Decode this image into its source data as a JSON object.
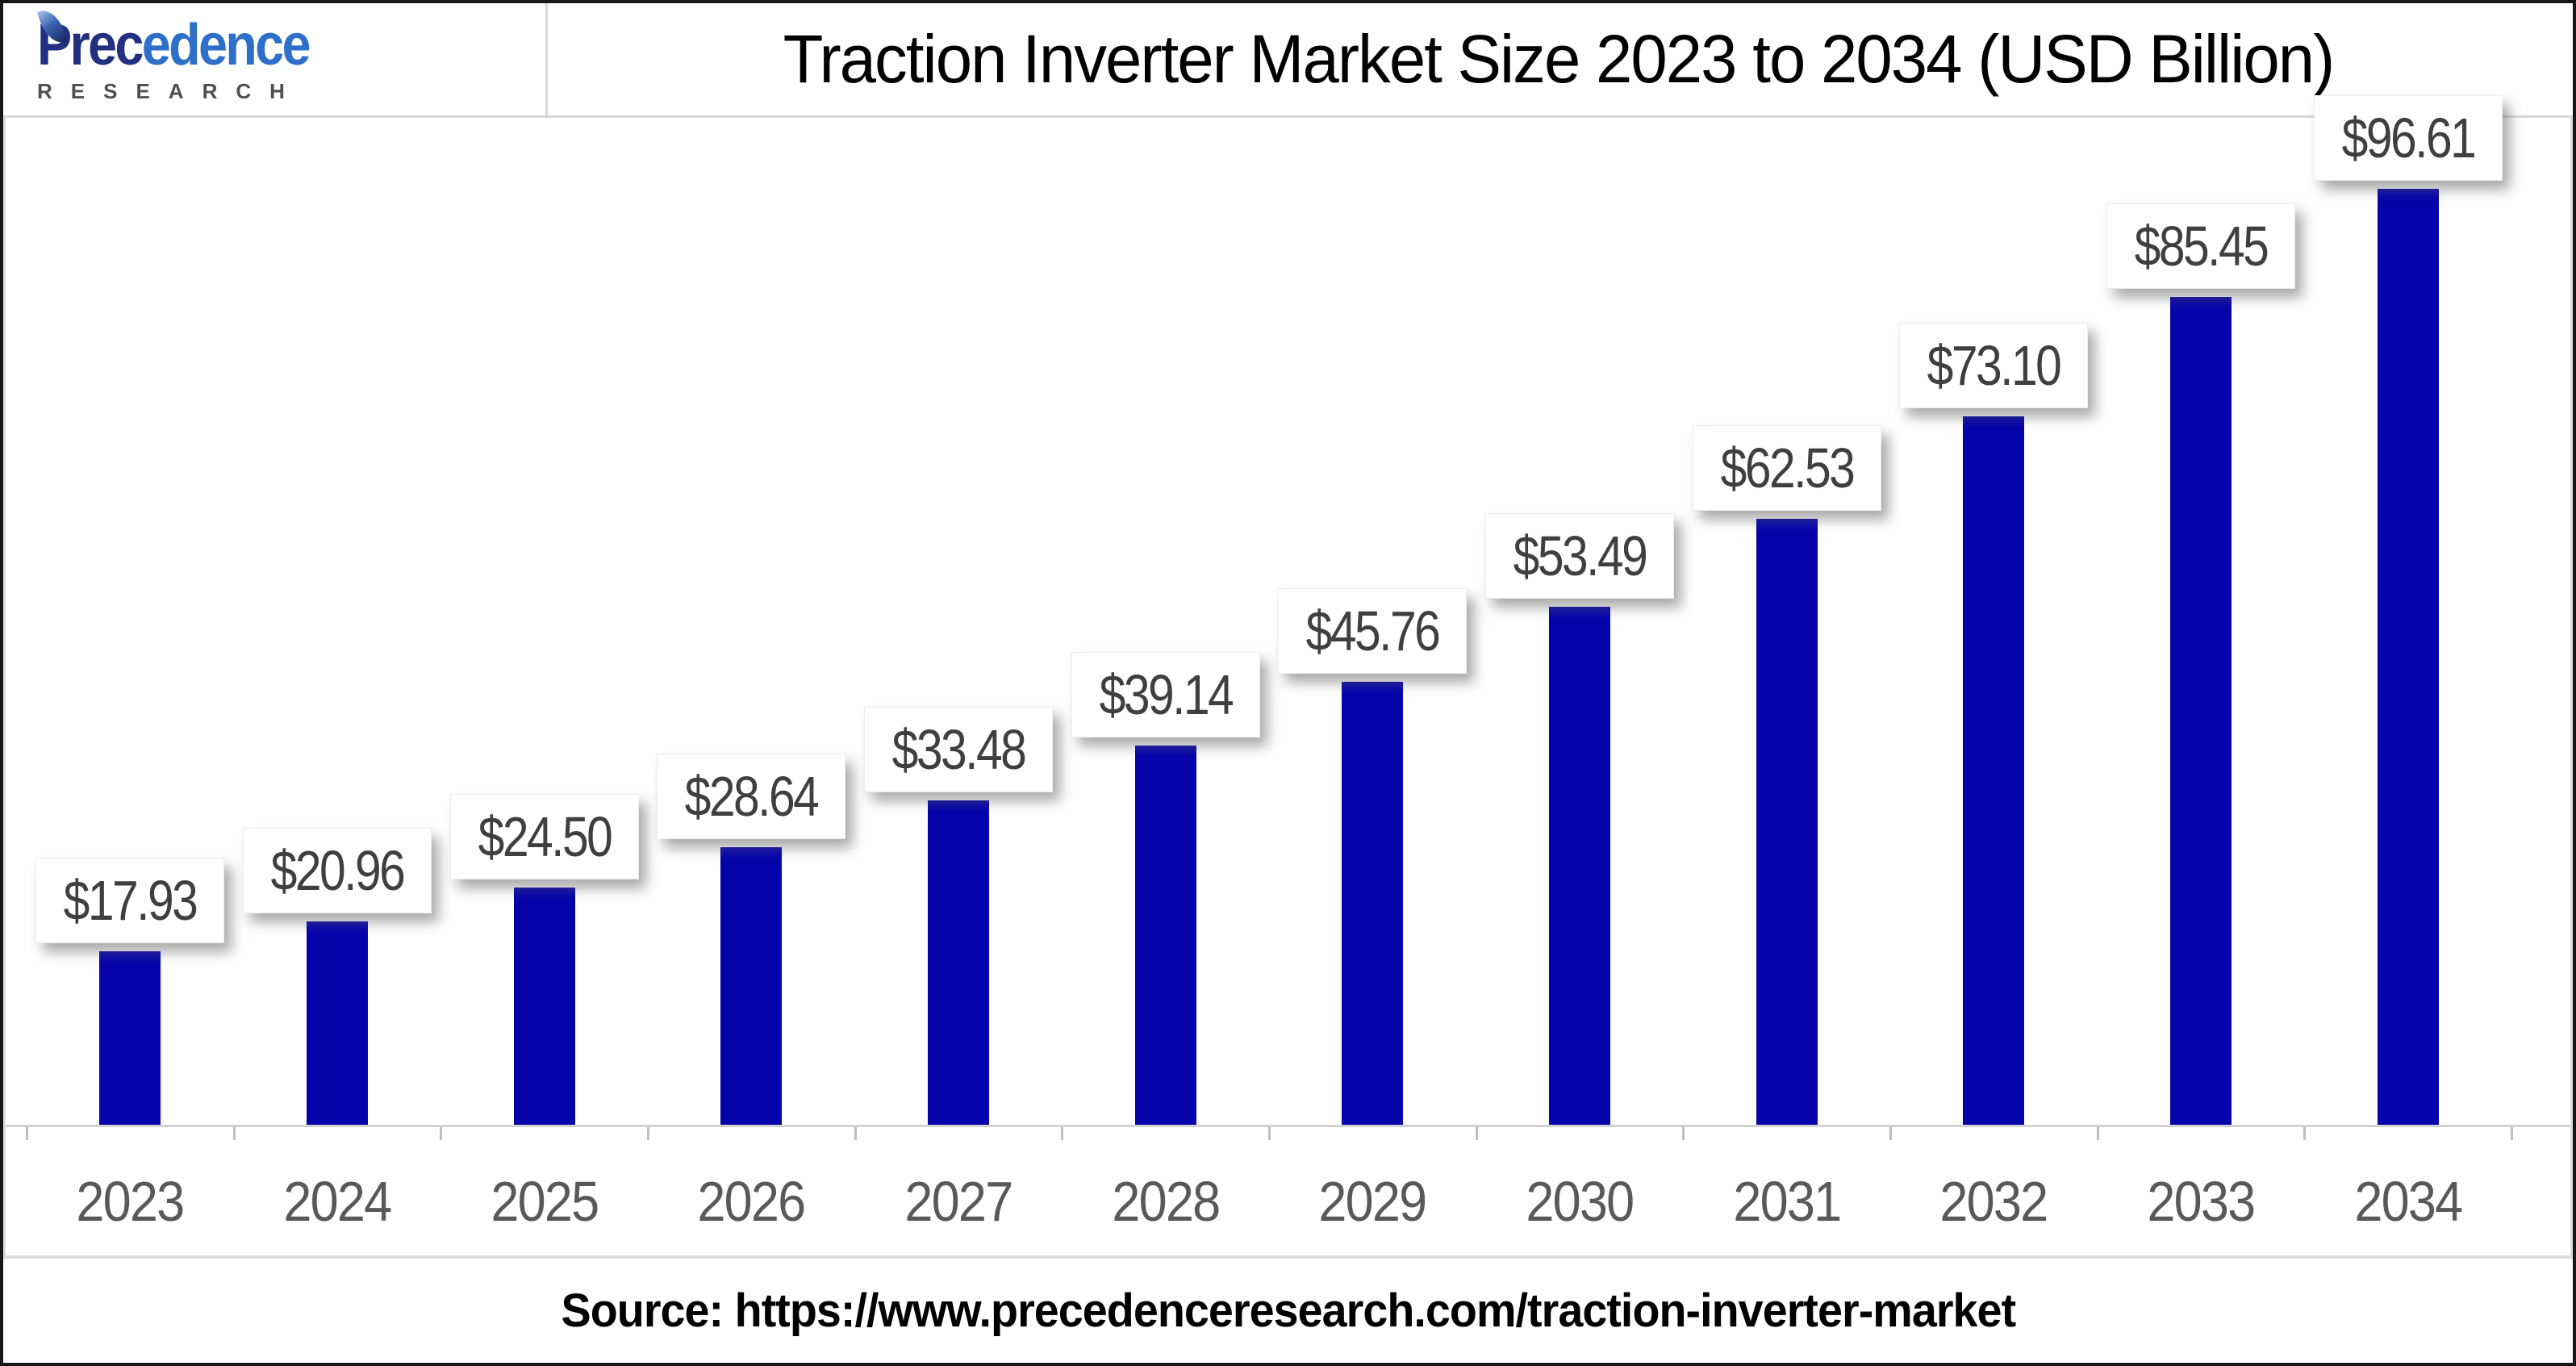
{
  "header": {
    "logo": {
      "brand_part1": "Prec",
      "brand_part2": "edence",
      "brand_full": "Precedence",
      "subtitle": "RESEARCH",
      "leaf_icon_colors": [
        "#a9c3ec",
        "#3a64b0",
        "#16245e"
      ]
    },
    "title": "Traction Inverter Market Size 2023 to 2034 (USD Billion)"
  },
  "footer": {
    "source": "Source: https://www.precedenceresearch.com/traction-inverter-market"
  },
  "chart_data": {
    "type": "bar",
    "title": "Traction Inverter Market Size 2023 to 2034 (USD Billion)",
    "unit": "USD Billion",
    "currency_prefix": "$",
    "categories": [
      "2023",
      "2024",
      "2025",
      "2026",
      "2027",
      "2028",
      "2029",
      "2030",
      "2031",
      "2032",
      "2033",
      "2034"
    ],
    "values": [
      17.93,
      20.96,
      24.5,
      28.64,
      33.48,
      39.14,
      45.76,
      53.49,
      62.53,
      73.1,
      85.45,
      96.61
    ],
    "labels": [
      "$17.93",
      "$20.96",
      "$24.50",
      "$28.64",
      "$33.48",
      "$39.14",
      "$45.76",
      "$53.49",
      "$62.53",
      "$73.10",
      "$85.45",
      "$96.61"
    ],
    "xlabel": "",
    "ylabel": "",
    "ylim": [
      0,
      100
    ],
    "grid": false,
    "legend": false,
    "bar_color": "#0504AA",
    "value_label_color": "#3F3F3F",
    "value_label_bg": "#FFFFFF",
    "year_label_color": "#595959",
    "axis_color": "#D2D2D2",
    "tick_color": "#BFBFBF"
  }
}
